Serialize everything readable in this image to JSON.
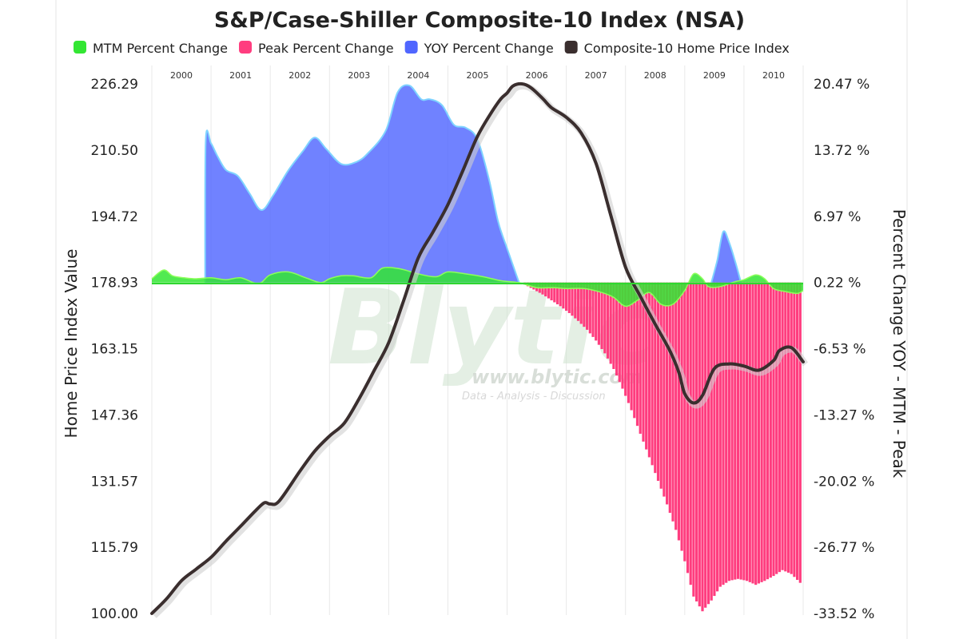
{
  "chart_data": {
    "type": "area",
    "title": "S&P/Case-Shiller Composite-10 Index (NSA)",
    "ylabel_left": "Home Price Index Value",
    "ylabel_right": "Percent Change YOY - MTM - Peak",
    "grid_vertical": true,
    "legend_position": "top",
    "left_axis": {
      "ylim": [
        100.0,
        226.29
      ],
      "ticks": [
        "226.29",
        "210.50",
        "194.72",
        "178.93",
        "163.15",
        "147.36",
        "131.57",
        "115.79",
        "100.00"
      ]
    },
    "right_axis": {
      "ylim": [
        -33.52,
        20.47
      ],
      "ticks": [
        "20.47 %",
        "13.72 %",
        "6.97 %",
        "0.22 %",
        "-6.53 %",
        "-13.27 %",
        "-20.02 %",
        "-26.77 %",
        "-33.52 %"
      ]
    },
    "years": [
      "2000",
      "2001",
      "2002",
      "2003",
      "2004",
      "2005",
      "2006",
      "2007",
      "2008",
      "2009",
      "2010"
    ],
    "x_range": [
      2000.0,
      2011.0
    ],
    "series": [
      {
        "name": "MTM Percent Change",
        "type": "area",
        "color": "#33e633",
        "points": [
          [
            2000.0,
            0.6
          ],
          [
            2000.2,
            1.5
          ],
          [
            2000.35,
            0.9
          ],
          [
            2000.55,
            0.7
          ],
          [
            2000.75,
            0.6
          ],
          [
            2001.0,
            0.7
          ],
          [
            2001.25,
            0.5
          ],
          [
            2001.5,
            0.7
          ],
          [
            2001.8,
            0.1
          ],
          [
            2002.0,
            1.0
          ],
          [
            2002.3,
            1.3
          ],
          [
            2002.6,
            0.7
          ],
          [
            2002.85,
            0.2
          ],
          [
            2003.0,
            0.6
          ],
          [
            2003.2,
            0.9
          ],
          [
            2003.4,
            0.9
          ],
          [
            2003.7,
            0.7
          ],
          [
            2003.9,
            1.7
          ],
          [
            2004.2,
            1.6
          ],
          [
            2004.5,
            1.1
          ],
          [
            2004.8,
            0.8
          ],
          [
            2005.0,
            1.3
          ],
          [
            2005.3,
            1.1
          ],
          [
            2005.6,
            0.8
          ],
          [
            2005.9,
            0.4
          ],
          [
            2006.2,
            0.2
          ],
          [
            2006.5,
            -0.3
          ],
          [
            2006.8,
            -0.3
          ],
          [
            2007.0,
            -0.4
          ],
          [
            2007.3,
            -0.4
          ],
          [
            2007.6,
            -0.8
          ],
          [
            2007.8,
            -1.3
          ],
          [
            2008.0,
            -2.2
          ],
          [
            2008.2,
            -1.6
          ],
          [
            2008.4,
            -0.8
          ],
          [
            2008.6,
            -2.0
          ],
          [
            2008.8,
            -2.0
          ],
          [
            2009.0,
            -0.6
          ],
          [
            2009.15,
            1.1
          ],
          [
            2009.3,
            0.6
          ],
          [
            2009.4,
            -0.2
          ],
          [
            2009.6,
            -0.2
          ],
          [
            2009.85,
            0.3
          ],
          [
            2010.0,
            0.5
          ],
          [
            2010.2,
            1.0
          ],
          [
            2010.35,
            0.6
          ],
          [
            2010.5,
            -0.4
          ],
          [
            2010.7,
            -0.7
          ],
          [
            2010.9,
            -0.9
          ],
          [
            2011.0,
            -0.6
          ]
        ]
      },
      {
        "name": "Peak Percent Change",
        "type": "bar",
        "color": "#ff3d7f",
        "points": [
          [
            2006.3,
            0.0
          ],
          [
            2006.45,
            -0.5
          ],
          [
            2006.6,
            -1.0
          ],
          [
            2006.75,
            -1.6
          ],
          [
            2006.9,
            -2.2
          ],
          [
            2007.05,
            -2.9
          ],
          [
            2007.2,
            -3.7
          ],
          [
            2007.35,
            -4.6
          ],
          [
            2007.5,
            -5.7
          ],
          [
            2007.65,
            -7.0
          ],
          [
            2007.8,
            -8.6
          ],
          [
            2007.95,
            -10.6
          ],
          [
            2008.1,
            -12.8
          ],
          [
            2008.25,
            -15.2
          ],
          [
            2008.4,
            -17.6
          ],
          [
            2008.55,
            -20.0
          ],
          [
            2008.7,
            -22.4
          ],
          [
            2008.85,
            -25.0
          ],
          [
            2009.0,
            -28.2
          ],
          [
            2009.15,
            -31.8
          ],
          [
            2009.3,
            -33.3
          ],
          [
            2009.45,
            -32.2
          ],
          [
            2009.6,
            -30.8
          ],
          [
            2009.75,
            -30.2
          ],
          [
            2009.9,
            -30.0
          ],
          [
            2010.05,
            -30.2
          ],
          [
            2010.2,
            -30.6
          ],
          [
            2010.35,
            -30.2
          ],
          [
            2010.5,
            -29.7
          ],
          [
            2010.65,
            -29.1
          ],
          [
            2010.8,
            -29.5
          ],
          [
            2010.95,
            -30.4
          ]
        ]
      },
      {
        "name": "YOY Percent Change",
        "type": "area",
        "color": "#5066ff",
        "points": [
          [
            2000.9,
            0.22
          ],
          [
            2000.91,
            14.7
          ],
          [
            2001.0,
            14.4
          ],
          [
            2001.1,
            13.2
          ],
          [
            2001.25,
            11.7
          ],
          [
            2001.45,
            11.1
          ],
          [
            2001.65,
            9.3
          ],
          [
            2001.85,
            7.6
          ],
          [
            2002.05,
            9.1
          ],
          [
            2002.3,
            11.6
          ],
          [
            2002.55,
            13.6
          ],
          [
            2002.75,
            15.0
          ],
          [
            2002.95,
            13.8
          ],
          [
            2003.2,
            12.3
          ],
          [
            2003.45,
            12.5
          ],
          [
            2003.65,
            13.4
          ],
          [
            2003.95,
            15.7
          ],
          [
            2004.15,
            19.6
          ],
          [
            2004.35,
            20.3
          ],
          [
            2004.55,
            18.9
          ],
          [
            2004.7,
            18.9
          ],
          [
            2004.9,
            18.3
          ],
          [
            2005.1,
            16.3
          ],
          [
            2005.3,
            16.0
          ],
          [
            2005.5,
            14.8
          ],
          [
            2005.7,
            10.6
          ],
          [
            2005.85,
            6.4
          ],
          [
            2006.0,
            3.7
          ],
          [
            2006.2,
            0.22
          ],
          [
            2009.45,
            0.22
          ],
          [
            2009.55,
            2.5
          ],
          [
            2009.65,
            5.4
          ],
          [
            2009.75,
            4.3
          ],
          [
            2009.85,
            2.4
          ],
          [
            2009.95,
            0.22
          ]
        ]
      },
      {
        "name": "Composite-10 Home Price Index",
        "type": "line",
        "axis": "left",
        "color": "#3a2e2e",
        "points": [
          [
            2000.0,
            100.0
          ],
          [
            2000.25,
            103.5
          ],
          [
            2000.5,
            107.8
          ],
          [
            2000.75,
            110.6
          ],
          [
            2001.0,
            113.4
          ],
          [
            2001.25,
            117.2
          ],
          [
            2001.5,
            120.8
          ],
          [
            2001.75,
            124.5
          ],
          [
            2001.9,
            126.4
          ],
          [
            2002.0,
            126.1
          ],
          [
            2002.15,
            126.8
          ],
          [
            2002.5,
            133.9
          ],
          [
            2002.75,
            138.7
          ],
          [
            2003.0,
            142.3
          ],
          [
            2003.25,
            145.4
          ],
          [
            2003.5,
            151.2
          ],
          [
            2003.75,
            157.8
          ],
          [
            2004.0,
            164.6
          ],
          [
            2004.25,
            174.5
          ],
          [
            2004.5,
            184.8
          ],
          [
            2004.75,
            191.0
          ],
          [
            2005.0,
            197.5
          ],
          [
            2005.25,
            205.5
          ],
          [
            2005.5,
            213.8
          ],
          [
            2005.75,
            219.8
          ],
          [
            2005.9,
            222.8
          ],
          [
            2006.0,
            224.1
          ],
          [
            2006.1,
            225.8
          ],
          [
            2006.25,
            226.29
          ],
          [
            2006.4,
            225.4
          ],
          [
            2006.6,
            222.8
          ],
          [
            2006.75,
            220.6
          ],
          [
            2007.0,
            218.3
          ],
          [
            2007.25,
            214.6
          ],
          [
            2007.5,
            207.4
          ],
          [
            2007.75,
            195.0
          ],
          [
            2008.0,
            182.6
          ],
          [
            2008.25,
            175.6
          ],
          [
            2008.5,
            169.0
          ],
          [
            2008.75,
            162.6
          ],
          [
            2008.9,
            157.5
          ],
          [
            2009.0,
            152.4
          ],
          [
            2009.15,
            150.2
          ],
          [
            2009.3,
            152.0
          ],
          [
            2009.5,
            158.4
          ],
          [
            2009.75,
            159.5
          ],
          [
            2010.0,
            159.0
          ],
          [
            2010.25,
            158.0
          ],
          [
            2010.5,
            160.3
          ],
          [
            2010.6,
            162.7
          ],
          [
            2010.8,
            163.4
          ],
          [
            2011.0,
            160.0
          ]
        ]
      }
    ]
  }
}
